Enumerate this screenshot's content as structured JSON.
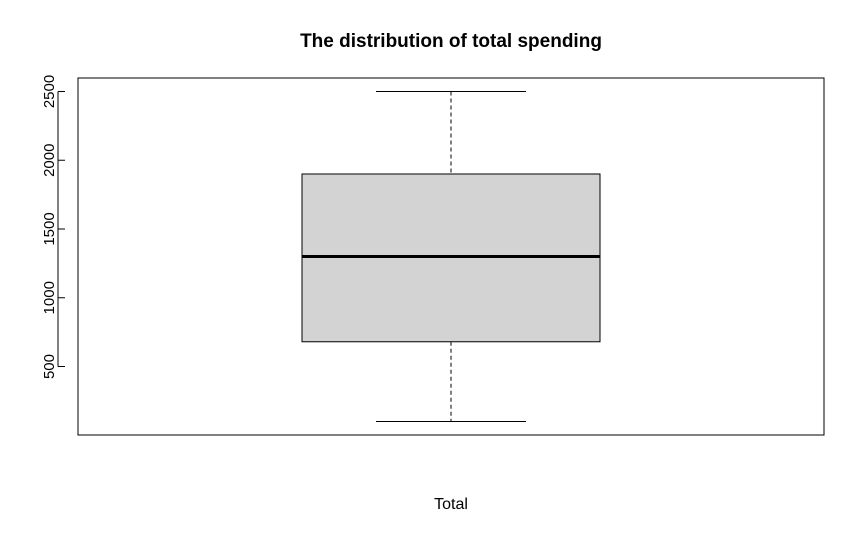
{
  "chart_data": {
    "type": "boxplot",
    "title": "The distribution of total spending",
    "xlabel": "Total",
    "ylabel": "",
    "series": [
      {
        "min": 100,
        "q1": 680,
        "median": 1300,
        "q3": 1900,
        "max": 2500
      }
    ],
    "yticks": [
      500,
      1000,
      1500,
      2000,
      2500
    ],
    "ytick_labels": [
      "500",
      "1000",
      "1500",
      "2000",
      "2500"
    ],
    "ylim": [
      2,
      2598
    ],
    "grid": false,
    "colors": {
      "box_fill": "#d3d3d3",
      "stroke": "#000000",
      "background": "#ffffff"
    }
  }
}
